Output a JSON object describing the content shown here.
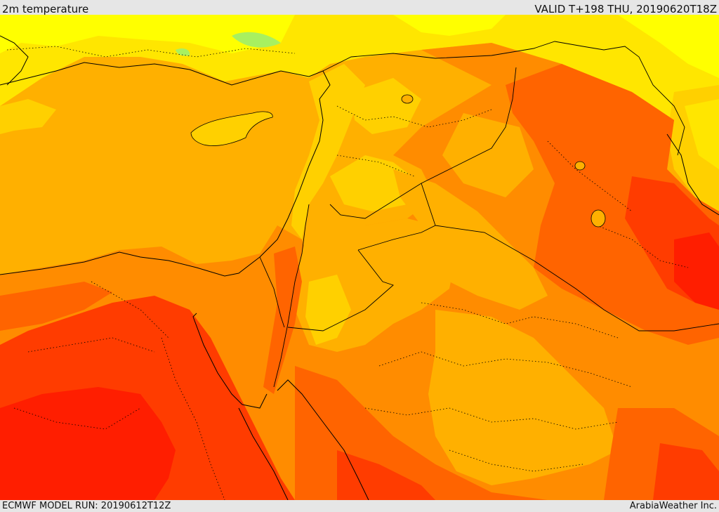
{
  "header": {
    "title": "2m temperature",
    "valid": "VALID T+198 THU, 20190620T18Z"
  },
  "footer": {
    "model_run": "ECMWF MODEL RUN: 20190612T12Z",
    "credit": "ArabiaWeather Inc."
  },
  "map": {
    "field": "2m temperature",
    "colors": {
      "yellow": "#ffff00",
      "light_yellow": "#ffe600",
      "gold": "#ffd000",
      "amber": "#ffb000",
      "orange": "#ff8c00",
      "dark_orange": "#ff6400",
      "red_orange": "#ff3c00",
      "red": "#ff1e00",
      "green": "#a8f060"
    }
  }
}
